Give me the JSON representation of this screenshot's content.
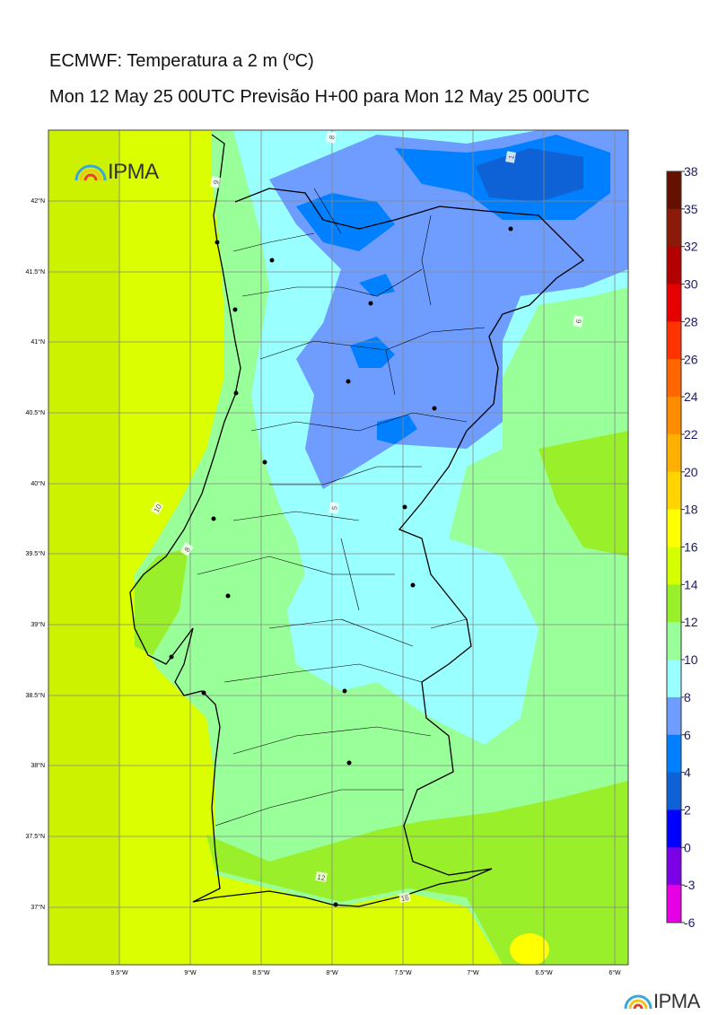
{
  "header": {
    "title": "ECMWF: Temperatura a 2 m (ºC)",
    "subtitle": "Mon 12 May 25 00UTC Previsão H+00 para Mon 12 May 25 00UTC"
  },
  "logo": {
    "text": "IPMA"
  },
  "footer_logo": {
    "text": "IPMA"
  },
  "axes": {
    "lon_ticks": [
      "9.5°W",
      "9°W",
      "8.5°W",
      "8°W",
      "7.5°W",
      "7°W",
      "6.5°W",
      "6°W"
    ],
    "lat_ticks": [
      "42°N",
      "41.5°N",
      "41°N",
      "40.5°N",
      "40°N",
      "39.5°N",
      "39°N",
      "38.5°N",
      "38°N",
      "37.5°N",
      "37°N"
    ]
  },
  "colorbar": {
    "labels": [
      "38",
      "35",
      "32",
      "30",
      "28",
      "26",
      "24",
      "22",
      "20",
      "18",
      "16",
      "14",
      "12",
      "10",
      "8",
      "6",
      "4",
      "2",
      "0",
      "-3",
      "-6"
    ],
    "colors": [
      "#661100",
      "#8b1a0a",
      "#b30000",
      "#e60000",
      "#ff3300",
      "#ff6600",
      "#ff8c00",
      "#ffb000",
      "#ffd400",
      "#ffff00",
      "#d4ff00",
      "#99f02a",
      "#99ff99",
      "#99ffff",
      "#6e9cff",
      "#0080ff",
      "#0f62d6",
      "#0000ff",
      "#7b00e6",
      "#e600e6"
    ]
  },
  "contour_labels": [
    "8",
    "1",
    "9",
    "6",
    "5",
    "10",
    "8",
    "12",
    "16"
  ],
  "colors": {
    "sea": "#dbff00",
    "land_warm": "#99ff99",
    "cold_mid": "#99ffff",
    "cold": "#6e9cff",
    "colder": "#0080ff",
    "coldest": "#0f62d6",
    "grid": "#888888"
  }
}
